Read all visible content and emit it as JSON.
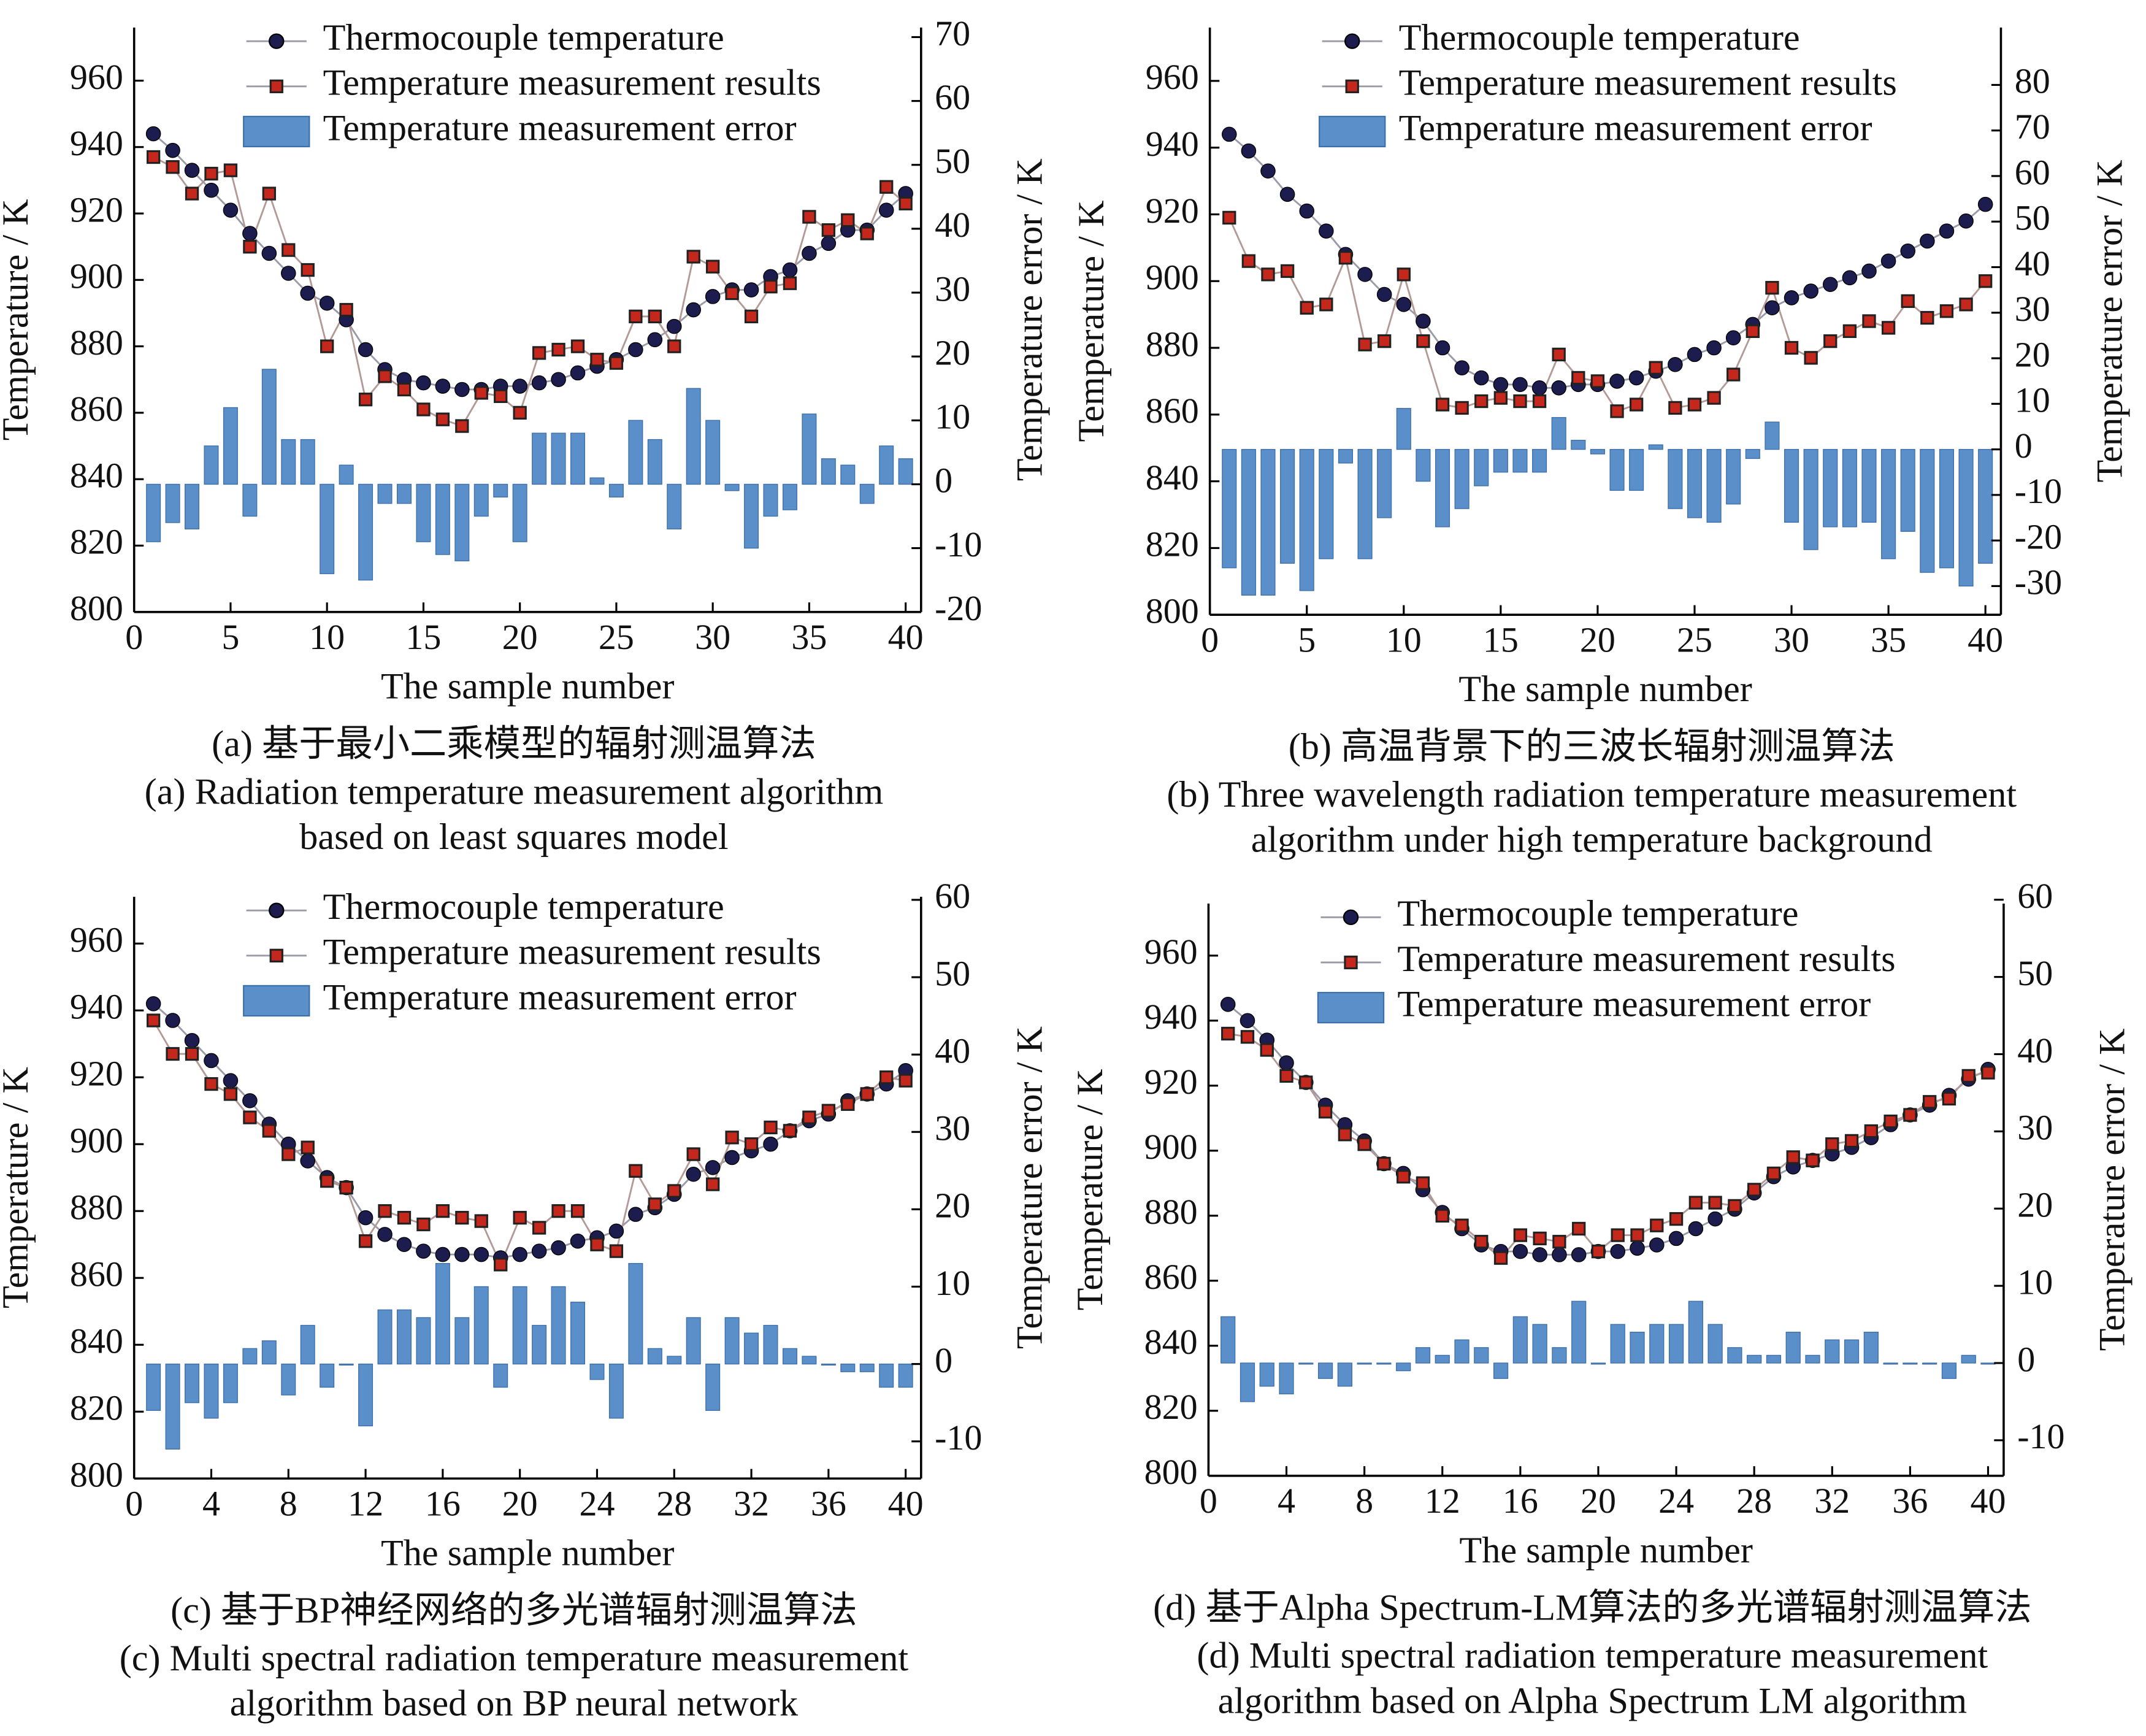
{
  "chart_data": [
    {
      "type": "line",
      "caption": [
        "(a) 基于最小二乘模型的辐射测温算法",
        "(a) Radiation temperature measurement algorithm",
        "based on least squares model"
      ],
      "xlabel": "The sample number",
      "ylabel": "Temperature / K",
      "y2label": "Temperature error / K",
      "x": [
        1,
        2,
        3,
        4,
        5,
        6,
        7,
        8,
        9,
        10,
        11,
        12,
        13,
        14,
        15,
        16,
        17,
        18,
        19,
        20,
        21,
        22,
        23,
        24,
        25,
        26,
        27,
        28,
        29,
        30,
        31,
        32,
        33,
        34,
        35,
        36,
        37,
        38,
        39,
        40
      ],
      "xlim": [
        0,
        40.8
      ],
      "xticks": [
        0,
        5,
        10,
        15,
        20,
        25,
        30,
        35,
        40
      ],
      "ylim": [
        800,
        976
      ],
      "yticks": [
        800,
        820,
        840,
        860,
        880,
        900,
        920,
        940,
        960
      ],
      "y2lim": [
        -20,
        71.5
      ],
      "y2ticks": [
        -20,
        -10,
        0,
        10,
        20,
        30,
        40,
        50,
        60,
        70
      ],
      "series": [
        {
          "name": "Thermocouple temperature",
          "type": "line",
          "color": "#1c1c4e",
          "values": [
            944,
            939,
            933,
            927,
            921,
            914,
            908,
            902,
            896,
            893,
            888,
            879,
            873,
            870,
            869,
            868,
            867,
            867,
            868,
            868,
            869,
            870,
            872,
            874,
            876,
            879,
            882,
            886,
            891,
            895,
            897,
            897,
            901,
            903,
            908,
            911,
            915,
            915,
            921,
            926
          ]
        },
        {
          "name": "Temperature measurement results",
          "type": "line",
          "color": "#c4281c",
          "values": [
            937,
            934,
            926,
            932,
            933,
            910,
            926,
            909,
            903,
            880,
            891,
            864,
            871,
            867,
            861,
            858,
            856,
            866,
            865,
            860,
            878,
            879,
            880,
            876,
            875,
            889,
            889,
            880,
            907,
            904,
            896,
            889,
            898,
            899,
            919,
            915,
            918,
            914,
            928,
            923
          ]
        },
        {
          "name": "Temperature measurement error",
          "type": "bar",
          "axis": "y2",
          "color": "#5b8fc9",
          "values": [
            -9,
            -6,
            -7,
            6,
            12,
            -5,
            18,
            7,
            7,
            -14,
            3,
            -15,
            -3,
            -3,
            -9,
            -11,
            -12,
            -5,
            -2,
            -9,
            8,
            8,
            8,
            1,
            -2,
            10,
            7,
            -7,
            15,
            10,
            -1,
            -10,
            -5,
            -4,
            11,
            4,
            3,
            -3,
            6,
            4
          ]
        }
      ]
    },
    {
      "type": "line",
      "caption": [
        "(b) 高温背景下的三波长辐射测温算法",
        "(b) Three wavelength radiation temperature measurement",
        "algorithm under high temperature background"
      ],
      "xlabel": "The sample number",
      "ylabel": "Temperature / K",
      "y2label": "Temperature error / K",
      "x": [
        1,
        2,
        3,
        4,
        5,
        6,
        7,
        8,
        9,
        10,
        11,
        12,
        13,
        14,
        15,
        16,
        17,
        18,
        19,
        20,
        21,
        22,
        23,
        24,
        25,
        26,
        27,
        28,
        29,
        30,
        31,
        32,
        33,
        34,
        35,
        36,
        37,
        38,
        39,
        40
      ],
      "xlim": [
        0,
        40.8
      ],
      "xticks": [
        0,
        5,
        10,
        15,
        20,
        25,
        30,
        35,
        40
      ],
      "ylim": [
        800,
        976
      ],
      "yticks": [
        800,
        820,
        840,
        860,
        880,
        900,
        920,
        940,
        960
      ],
      "y2lim": [
        -36.3,
        92.6
      ],
      "y2ticks": [
        -30,
        -20,
        -10,
        0,
        10,
        20,
        30,
        40,
        50,
        60,
        70,
        80
      ],
      "series": [
        {
          "name": "Thermocouple temperature",
          "type": "line",
          "color": "#1c1c4e",
          "values": [
            944,
            939,
            933,
            926,
            921,
            915,
            908,
            902,
            896,
            893,
            888,
            880,
            874,
            871,
            869,
            869,
            868,
            868,
            869,
            869,
            870,
            871,
            873,
            875,
            878,
            880,
            883,
            887,
            892,
            895,
            897,
            899,
            901,
            903,
            906,
            909,
            912,
            915,
            918,
            923
          ]
        },
        {
          "name": "Temperature measurement results",
          "type": "line",
          "color": "#c4281c",
          "values": [
            919,
            906,
            902,
            903,
            892,
            893,
            907,
            881,
            882,
            902,
            882,
            863,
            862,
            864,
            865,
            864,
            864,
            878,
            871,
            870,
            861,
            863,
            874,
            862,
            863,
            865,
            872,
            885,
            898,
            880,
            877,
            882,
            885,
            888,
            886,
            894,
            889,
            891,
            893,
            900
          ]
        },
        {
          "name": "Temperature measurement error",
          "type": "bar",
          "axis": "y2",
          "color": "#5b8fc9",
          "values": [
            -26,
            -32,
            -32,
            -25,
            -31,
            -24,
            -3,
            -24,
            -15,
            9,
            -7,
            -17,
            -13,
            -8,
            -5,
            -5,
            -5,
            7,
            2,
            -1,
            -9,
            -9,
            1,
            -13,
            -15,
            -16,
            -12,
            -2,
            6,
            -16,
            -22,
            -17,
            -17,
            -16,
            -24,
            -18,
            -27,
            -26,
            -30,
            -25
          ]
        }
      ]
    },
    {
      "type": "line",
      "caption": [
        "(c) 基于BP神经网络的多光谱辐射测温算法",
        "(c) Multi spectral radiation temperature measurement",
        "algorithm based on BP neural network"
      ],
      "xlabel": "The sample number",
      "ylabel": "Temperature / K",
      "y2label": "Temperature error / K",
      "x": [
        1,
        2,
        3,
        4,
        5,
        6,
        7,
        8,
        9,
        10,
        11,
        12,
        13,
        14,
        15,
        16,
        17,
        18,
        19,
        20,
        21,
        22,
        23,
        24,
        25,
        26,
        27,
        28,
        29,
        30,
        31,
        32,
        33,
        34,
        35,
        36,
        37,
        38,
        39,
        40
      ],
      "xlim": [
        0,
        40.8
      ],
      "xticks": [
        0,
        4,
        8,
        12,
        16,
        20,
        24,
        28,
        32,
        36,
        40
      ],
      "ylim": [
        800,
        974
      ],
      "yticks": [
        800,
        820,
        840,
        860,
        880,
        900,
        920,
        940,
        960
      ],
      "y2lim": [
        -14.8,
        60.4
      ],
      "y2ticks": [
        -10,
        0,
        10,
        20,
        30,
        40,
        50,
        60
      ],
      "series": [
        {
          "name": "Thermocouple temperature",
          "type": "line",
          "color": "#1c1c4e",
          "values": [
            942,
            937,
            931,
            925,
            919,
            913,
            906,
            900,
            895,
            890,
            887,
            878,
            873,
            870,
            868,
            867,
            867,
            867,
            866,
            867,
            868,
            869,
            871,
            872,
            874,
            879,
            881,
            885,
            891,
            893,
            896,
            898,
            900,
            904,
            907,
            909,
            913,
            915,
            918,
            922
          ]
        },
        {
          "name": "Temperature measurement results",
          "type": "line",
          "color": "#c4281c",
          "values": [
            937,
            927,
            927,
            918,
            915,
            908,
            904,
            897,
            899,
            889,
            887,
            871,
            880,
            878,
            876,
            880,
            878,
            877,
            864,
            878,
            875,
            880,
            880,
            870,
            868,
            892,
            882,
            886,
            897,
            888,
            902,
            900,
            905,
            904,
            908,
            910,
            912,
            915,
            920,
            919
          ]
        },
        {
          "name": "Temperature measurement error",
          "type": "bar",
          "axis": "y2",
          "color": "#5b8fc9",
          "values": [
            -6,
            -11,
            -5,
            -7,
            -5,
            2,
            3,
            -4,
            5,
            -3,
            0,
            -8,
            7,
            7,
            6,
            13,
            6,
            10,
            -3,
            10,
            5,
            10,
            8,
            -2,
            -7,
            13,
            2,
            1,
            6,
            -6,
            6,
            4,
            5,
            2,
            1,
            0,
            -1,
            -1,
            -3,
            -3
          ]
        }
      ]
    },
    {
      "type": "line",
      "caption": [
        "(d) 基于Alpha Spectrum-LM算法的多光谱辐射测温算法",
        "(d) Multi spectral radiation temperature measurement",
        "algorithm based on Alpha Spectrum LM algorithm"
      ],
      "xlabel": "The sample number",
      "ylabel": "Temperature / K",
      "y2label": "Temperature error / K",
      "x": [
        1,
        2,
        3,
        4,
        5,
        6,
        7,
        8,
        9,
        10,
        11,
        12,
        13,
        14,
        15,
        16,
        17,
        18,
        19,
        20,
        21,
        22,
        23,
        24,
        25,
        26,
        27,
        28,
        29,
        30,
        31,
        32,
        33,
        34,
        35,
        36,
        37,
        38,
        39,
        40
      ],
      "xlim": [
        0,
        40.8
      ],
      "xticks": [
        0,
        4,
        8,
        12,
        16,
        20,
        24,
        28,
        32,
        36,
        40
      ],
      "ylim": [
        800,
        976
      ],
      "yticks": [
        800,
        820,
        840,
        860,
        880,
        900,
        920,
        940,
        960
      ],
      "y2lim": [
        -14.6,
        59.5
      ],
      "y2ticks": [
        -10,
        0,
        10,
        20,
        30,
        40,
        50,
        60
      ],
      "series": [
        {
          "name": "Thermocouple temperature",
          "type": "line",
          "color": "#1c1c4e",
          "values": [
            945,
            940,
            934,
            927,
            921,
            914,
            908,
            903,
            896,
            893,
            888,
            881,
            876,
            871,
            869,
            869,
            868,
            868,
            868,
            869,
            869,
            870,
            871,
            873,
            876,
            879,
            882,
            887,
            892,
            895,
            897,
            899,
            901,
            904,
            908,
            911,
            914,
            917,
            922,
            925
          ]
        },
        {
          "name": "Temperature measurement results",
          "type": "line",
          "color": "#c4281c",
          "values": [
            936,
            935,
            931,
            923,
            921,
            912,
            905,
            902,
            896,
            892,
            890,
            880,
            877,
            872,
            867,
            874,
            873,
            872,
            876,
            869,
            874,
            874,
            877,
            879,
            884,
            884,
            883,
            888,
            893,
            898,
            897,
            902,
            903,
            906,
            909,
            911,
            915,
            916,
            923,
            924
          ]
        },
        {
          "name": "Temperature measurement error",
          "type": "bar",
          "axis": "y2",
          "color": "#5b8fc9",
          "values": [
            6,
            -5,
            -3,
            -4,
            0,
            -2,
            -3,
            0,
            0,
            -1,
            2,
            1,
            3,
            2,
            -2,
            6,
            5,
            2,
            8,
            0,
            5,
            4,
            5,
            5,
            8,
            5,
            2,
            1,
            1,
            4,
            1,
            3,
            3,
            4,
            0,
            0,
            0,
            -2,
            1,
            0
          ]
        }
      ]
    }
  ]
}
